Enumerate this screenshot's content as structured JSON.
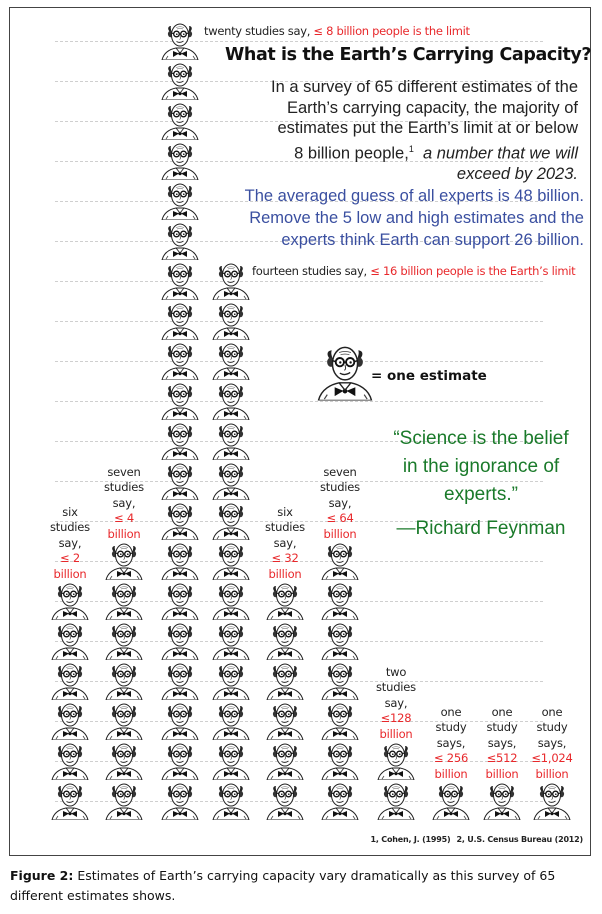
{
  "chart_data": {
    "type": "pictograph",
    "title": "What is the Earth's Carrying Capacity?",
    "unit_icon": "professor-figure-icon",
    "unit_meaning": "= one estimate",
    "categories": [
      "≤ 2 billion",
      "≤ 4 billion",
      "≤ 8 billion",
      "≤ 16 billion",
      "≤ 32 billion",
      "≤ 64 billion",
      "≤128 billion",
      "≤ 256 billion",
      "≤512 billion",
      "≤1,024 billion"
    ],
    "values": [
      6,
      7,
      20,
      14,
      6,
      7,
      2,
      1,
      1,
      1
    ],
    "total": 65,
    "grid": true
  },
  "header": {
    "twenty_label_prefix": "twenty studies say, ",
    "twenty_label_red": "≤ 8 billion people is the limit",
    "title": "What is the Earth’s Carrying Capacity?",
    "intro_line1": "In a survey of 65 different estimates of the",
    "intro_line2": "Earth’s carrying capacity, the majority of",
    "intro_line3": "estimates put the Earth’s limit at or below",
    "intro_line4a": "8 billion people,",
    "intro_sup": "1",
    "intro_line4b": "a number that we will",
    "intro_line5": "exceed by 2023.",
    "blue_line1": "The averaged guess of all experts is 48 billion.",
    "blue_line2": "Remove the 5 low and high estimates and the",
    "blue_line3": "experts think Earth can support 26 billion."
  },
  "fourteen_label": {
    "prefix": "fourteen studies say, ",
    "red": "≤ 16 billion people is the Earth’s limit"
  },
  "legend": {
    "text": "= one estimate"
  },
  "quote": {
    "line1": "“Science is the belief",
    "line2": "in the ignorance of",
    "line3": "experts.”",
    "attribution": "—Richard Feynman"
  },
  "column_labels": [
    {
      "lines": [
        "six",
        "studies",
        "say,"
      ],
      "red": [
        "≤ 2",
        "billion"
      ]
    },
    {
      "lines": [
        "seven",
        "studies",
        "say,"
      ],
      "red": [
        "≤ 4",
        "billion"
      ]
    },
    null,
    null,
    {
      "lines": [
        "six",
        "studies",
        "say,"
      ],
      "red": [
        "≤ 32",
        "billion"
      ]
    },
    {
      "lines": [
        "seven",
        "studies",
        "say,"
      ],
      "red": [
        "≤ 64",
        "billion"
      ]
    },
    {
      "lines": [
        "two",
        "studies",
        "say,"
      ],
      "red": [
        "≤128",
        "billion"
      ]
    },
    {
      "lines": [
        "one",
        "study",
        "says,"
      ],
      "red": [
        "≤ 256",
        "billion"
      ]
    },
    {
      "lines": [
        "one",
        "study",
        "says,"
      ],
      "red": [
        "≤512",
        "billion"
      ]
    },
    {
      "lines": [
        "one",
        "study",
        "says,"
      ],
      "red": [
        "≤1,024",
        "billion"
      ]
    }
  ],
  "references": {
    "ref1": "1, Cohen, J. (1995)",
    "ref2": "2,  U.S. Census Bureau (2012)"
  },
  "caption": {
    "label": "Figure 2:",
    "text": " Estimates of Earth’s carrying capacity vary dramatically as this survey of 65 different estimates shows."
  },
  "colors": {
    "red": "#e8282b",
    "blue": "#3a4fa0",
    "green": "#1a7a2a",
    "gridline": "#cfcfcf"
  }
}
